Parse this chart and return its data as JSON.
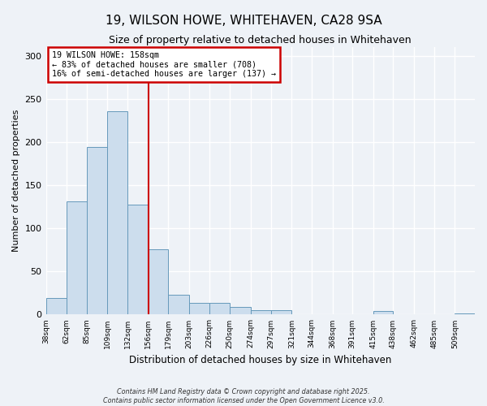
{
  "title": "19, WILSON HOWE, WHITEHAVEN, CA28 9SA",
  "subtitle": "Size of property relative to detached houses in Whitehaven",
  "xlabel": "Distribution of detached houses by size in Whitehaven",
  "ylabel": "Number of detached properties",
  "bar_color": "#ccdded",
  "bar_edge_color": "#6699bb",
  "background_color": "#eef2f7",
  "plot_bg_color": "#eef2f7",
  "bin_labels": [
    "38sqm",
    "62sqm",
    "85sqm",
    "109sqm",
    "132sqm",
    "156sqm",
    "179sqm",
    "203sqm",
    "226sqm",
    "250sqm",
    "274sqm",
    "297sqm",
    "321sqm",
    "344sqm",
    "368sqm",
    "391sqm",
    "415sqm",
    "438sqm",
    "462sqm",
    "485sqm",
    "509sqm"
  ],
  "bin_edges": [
    38,
    62,
    85,
    109,
    132,
    156,
    179,
    203,
    226,
    250,
    274,
    297,
    321,
    344,
    368,
    391,
    415,
    438,
    462,
    485,
    509,
    532
  ],
  "bar_heights": [
    19,
    131,
    194,
    236,
    127,
    76,
    23,
    14,
    14,
    9,
    5,
    5,
    0,
    0,
    0,
    0,
    4,
    0,
    0,
    0,
    1
  ],
  "vline_x": 156,
  "vline_color": "#cc0000",
  "ylim": [
    0,
    310
  ],
  "yticks": [
    0,
    50,
    100,
    150,
    200,
    250,
    300
  ],
  "annotation_title": "19 WILSON HOWE: 158sqm",
  "annotation_line1": "← 83% of detached houses are smaller (708)",
  "annotation_line2": "16% of semi-detached houses are larger (137) →",
  "annotation_box_color": "#ffffff",
  "annotation_box_edge": "#cc0000",
  "footer1": "Contains HM Land Registry data © Crown copyright and database right 2025.",
  "footer2": "Contains public sector information licensed under the Open Government Licence v3.0."
}
